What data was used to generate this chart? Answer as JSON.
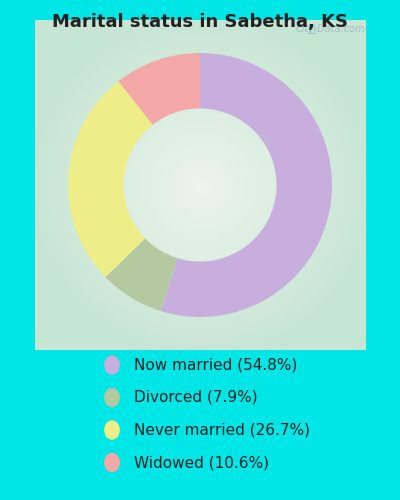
{
  "title": "Marital status in Sabetha, KS",
  "background_color": "#00e5e5",
  "chart_bg_color_outer": "#c8e6d4",
  "chart_bg_color_inner": "#e8f5ee",
  "categories": [
    "Now married",
    "Divorced",
    "Never married",
    "Widowed"
  ],
  "values": [
    54.8,
    7.9,
    26.7,
    10.6
  ],
  "colors": [
    "#c8aedd",
    "#b5c9a0",
    "#eeee88",
    "#f4a8a8"
  ],
  "legend_labels": [
    "Now married (54.8%)",
    "Divorced (7.9%)",
    "Never married (26.7%)",
    "Widowed (10.6%)"
  ],
  "donut_width": 0.42,
  "title_fontsize": 13,
  "legend_fontsize": 11,
  "watermark": "City-Data.com"
}
